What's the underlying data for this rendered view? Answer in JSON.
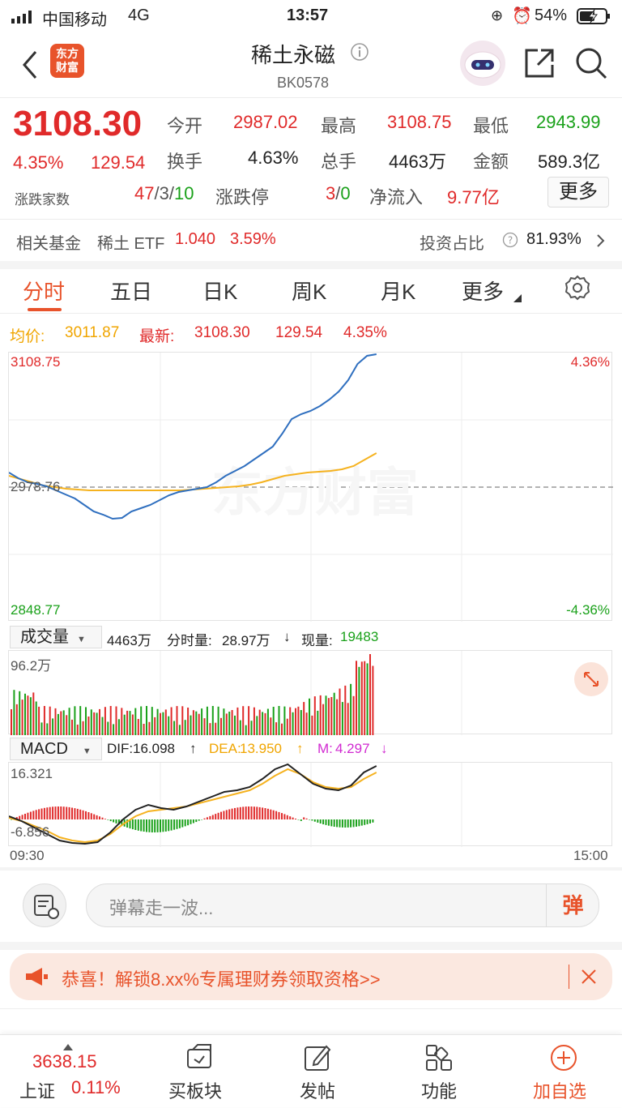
{
  "status": {
    "carrier": "中国移动",
    "network": "4G",
    "time": "13:57",
    "battery": "54%"
  },
  "nav": {
    "title": "稀土永磁",
    "code": "BK0578",
    "logo_line1": "东方",
    "logo_line2": "财富"
  },
  "quote": {
    "price": "3108.30",
    "change_pct": "4.35%",
    "change": "129.54",
    "open_label": "今开",
    "open": "2987.02",
    "high_label": "最高",
    "high": "3108.75",
    "low_label": "最低",
    "low": "2943.99",
    "turnover_label": "换手",
    "turnover": "4.63%",
    "volume_label": "总手",
    "volume": "4463万",
    "amount_label": "金额",
    "amount": "589.3亿",
    "breadth_label": "涨跌家数",
    "breadth_up": "47",
    "breadth_flat": "3",
    "breadth_down": "10",
    "limit_label": "涨跌停",
    "limit_up": "3",
    "limit_down": "0",
    "netflow_label": "净流入",
    "netflow": "9.77亿",
    "more_label": "更多"
  },
  "fund": {
    "label": "相关基金",
    "name": "稀土 ETF",
    "price": "1.040",
    "pct": "3.59%",
    "ratio_label": "投资占比",
    "ratio": "81.93%"
  },
  "tabs": [
    "分时",
    "五日",
    "日K",
    "周K",
    "月K",
    "更多"
  ],
  "intraday": {
    "avg_label": "均价:",
    "avg": "3011.87",
    "latest_label": "最新:",
    "latest": "3108.30",
    "latest_change": "129.54",
    "latest_pct": "4.35%",
    "y_top": "3108.75",
    "y_mid": "2978.76",
    "y_bottom": "2848.77",
    "pct_top": "4.36%",
    "pct_bottom": "-4.36%",
    "watermark": "东方财富"
  },
  "volume": {
    "selector": "成交量",
    "total": "4463万",
    "period_label": "分时量:",
    "period": "28.97万",
    "now_label": "现量:",
    "now": "19483",
    "max": "96.2万"
  },
  "macd": {
    "selector": "MACD",
    "dif_label": "DIF:",
    "dif": "16.098",
    "dea_label": "DEA:",
    "dea": "13.950",
    "m_label": "M:",
    "m": "4.297",
    "y_top": "16.321",
    "y_bottom": "-6.856",
    "time_start": "09:30",
    "time_end": "15:00"
  },
  "danmu": {
    "placeholder": "弹幕走一波...",
    "send": "弹"
  },
  "promo": {
    "text": "恭喜！解锁8.xx%专属理财券领取资格>>"
  },
  "bottom": {
    "index_value": "3638.15",
    "index_name": "上证",
    "index_pct": "0.11%",
    "buy_label": "买板块",
    "post_label": "发帖",
    "func_label": "功能",
    "add_label": "加自选"
  },
  "colors": {
    "up": "#e02a2a",
    "down": "#1aa11a",
    "accent": "#e8532b",
    "price_line": "#2f6fbf",
    "avg_line": "#f5b21f"
  }
}
